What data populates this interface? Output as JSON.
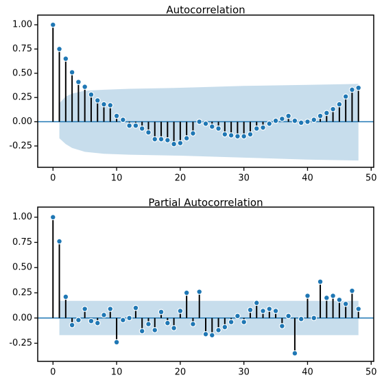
{
  "chart_data": [
    {
      "type": "stem",
      "title": "Autocorrelation",
      "x": [
        0,
        1,
        2,
        3,
        4,
        5,
        6,
        7,
        8,
        9,
        10,
        11,
        12,
        13,
        14,
        15,
        16,
        17,
        18,
        19,
        20,
        21,
        22,
        23,
        24,
        25,
        26,
        27,
        28,
        29,
        30,
        31,
        32,
        33,
        34,
        35,
        36,
        37,
        38,
        39,
        40,
        41,
        42,
        43,
        44,
        45,
        46,
        47,
        48
      ],
      "values": [
        1.0,
        0.75,
        0.65,
        0.51,
        0.41,
        0.36,
        0.28,
        0.22,
        0.18,
        0.17,
        0.06,
        0.02,
        -0.04,
        -0.04,
        -0.07,
        -0.11,
        -0.18,
        -0.18,
        -0.19,
        -0.23,
        -0.22,
        -0.17,
        -0.12,
        0.0,
        -0.02,
        -0.05,
        -0.07,
        -0.13,
        -0.14,
        -0.15,
        -0.15,
        -0.13,
        -0.07,
        -0.06,
        -0.02,
        0.01,
        0.03,
        0.06,
        0.01,
        -0.01,
        0.0,
        0.02,
        0.06,
        0.09,
        0.13,
        0.18,
        0.26,
        0.33,
        0.35
      ],
      "color": "#1f77b4",
      "stem_color": "#000000",
      "band": {
        "x": [
          1,
          2,
          3,
          5,
          8,
          12,
          20,
          30,
          40,
          48
        ],
        "upper": [
          0.19,
          0.26,
          0.29,
          0.32,
          0.33,
          0.34,
          0.35,
          0.37,
          0.38,
          0.39
        ],
        "lower": [
          -0.17,
          -0.23,
          -0.27,
          -0.31,
          -0.33,
          -0.34,
          -0.35,
          -0.37,
          -0.39,
          -0.4
        ],
        "color": "#1f77b4"
      },
      "hline": 0,
      "xlim": [
        -2.4,
        50.4
      ],
      "ylim": [
        -0.47,
        1.1
      ],
      "xticks": [
        0,
        10,
        20,
        30,
        40,
        50
      ],
      "yticks": [
        {
          "value": -0.25,
          "label": "-0.25"
        },
        {
          "value": 0,
          "label": "0.00"
        },
        {
          "value": 0.25,
          "label": "0.25"
        },
        {
          "value": 0.5,
          "label": "0.50"
        },
        {
          "value": 0.75,
          "label": "0.75"
        },
        {
          "value": 1,
          "label": "1.00"
        }
      ]
    },
    {
      "type": "stem",
      "title": "Partial Autocorrelation",
      "x": [
        0,
        1,
        2,
        3,
        4,
        5,
        6,
        7,
        8,
        9,
        10,
        11,
        12,
        13,
        14,
        15,
        16,
        17,
        18,
        19,
        20,
        21,
        22,
        23,
        24,
        25,
        26,
        27,
        28,
        29,
        30,
        31,
        32,
        33,
        34,
        35,
        36,
        37,
        38,
        39,
        40,
        41,
        42,
        43,
        44,
        45,
        46,
        47,
        48
      ],
      "values": [
        1.0,
        0.76,
        0.21,
        -0.07,
        -0.02,
        0.09,
        -0.03,
        -0.05,
        0.03,
        0.09,
        -0.24,
        -0.02,
        0.0,
        0.1,
        -0.13,
        -0.06,
        -0.12,
        0.06,
        -0.05,
        -0.1,
        0.07,
        0.25,
        -0.06,
        0.26,
        -0.16,
        -0.17,
        -0.12,
        -0.09,
        -0.04,
        0.02,
        -0.04,
        0.08,
        0.15,
        0.07,
        0.09,
        0.07,
        -0.08,
        0.02,
        -0.35,
        -0.01,
        0.22,
        0.0,
        0.36,
        0.2,
        0.22,
        0.18,
        0.14,
        0.27,
        0.09
      ],
      "color": "#1f77b4",
      "stem_color": "#000000",
      "band": {
        "x": [
          1,
          48
        ],
        "upper": [
          0.17,
          0.17
        ],
        "lower": [
          -0.17,
          -0.17
        ],
        "color": "#1f77b4"
      },
      "hline": 0,
      "xlim": [
        -2.4,
        50.4
      ],
      "ylim": [
        -0.43,
        1.1
      ],
      "xticks": [
        0,
        10,
        20,
        30,
        40,
        50
      ],
      "yticks": [
        {
          "value": -0.25,
          "label": "-0.25"
        },
        {
          "value": 0,
          "label": "0.00"
        },
        {
          "value": 0.25,
          "label": "0.25"
        },
        {
          "value": 0.5,
          "label": "0.50"
        },
        {
          "value": 0.75,
          "label": "0.75"
        },
        {
          "value": 1,
          "label": "1.00"
        }
      ]
    }
  ]
}
